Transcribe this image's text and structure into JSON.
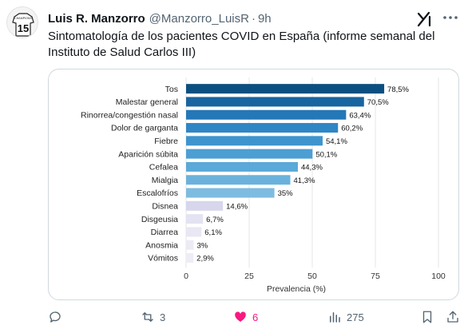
{
  "tweet": {
    "author_name": "Luis R. Manzorro",
    "handle": "@Manzorro_LuisR",
    "separator": "·",
    "time": "9h",
    "text": "Sintomatología de los pacientes COVID en España (informe semanal del Instituto de Salud Carlos III)",
    "avatar_jersey_number": "15",
    "avatar_text": "CHAMPIONS"
  },
  "actions": {
    "reply_count": "",
    "retweet_count": "3",
    "like_count": "6",
    "views_count": "275"
  },
  "icons": {
    "avatar": "jersey-avatar-icon",
    "grok": "grok-icon",
    "more": "more-icon",
    "reply": "reply-icon",
    "retweet": "retweet-icon",
    "like": "heart-icon",
    "views": "views-icon",
    "bookmark": "bookmark-icon",
    "share": "share-icon"
  },
  "colors": {
    "like_active": "#f91880",
    "muted": "#536471",
    "bar_palette": [
      "#0b4f80",
      "#1865a0",
      "#2478b7",
      "#2f86c4",
      "#3d94ce",
      "#4c9fd3",
      "#5aa9d8",
      "#6ab2dc",
      "#7ebbe0",
      "#d7d6ec",
      "#e4e3f2",
      "#e8e7f3",
      "#ecebf5",
      "#eeedf6"
    ]
  },
  "chart_data": {
    "type": "bar",
    "orientation": "horizontal",
    "categories": [
      "Tos",
      "Malestar general",
      "Rinorrea/congestión nasal",
      "Dolor de garganta",
      "Fiebre",
      "Aparición súbita",
      "Cefalea",
      "Mialgia",
      "Escalofríos",
      "Disnea",
      "Disgeusia",
      "Diarrea",
      "Anosmia",
      "Vómitos"
    ],
    "values": [
      78.5,
      70.5,
      63.4,
      60.2,
      54.1,
      50.1,
      44.3,
      41.3,
      35,
      14.6,
      6.7,
      6.1,
      3,
      2.9
    ],
    "value_labels": [
      "78,5%",
      "70,5%",
      "63,4%",
      "60,2%",
      "54,1%",
      "50,1%",
      "44,3%",
      "41,3%",
      "35%",
      "14,6%",
      "6,7%",
      "6,1%",
      "3%",
      "2,9%"
    ],
    "xlabel": "Prevalencia (%)",
    "ylabel": "",
    "xlim": [
      0,
      100
    ],
    "xticks": [
      0,
      25,
      50,
      75,
      100
    ],
    "xtick_labels": [
      "0",
      "25",
      "50",
      "75",
      "100"
    ],
    "grid": "vertical"
  }
}
